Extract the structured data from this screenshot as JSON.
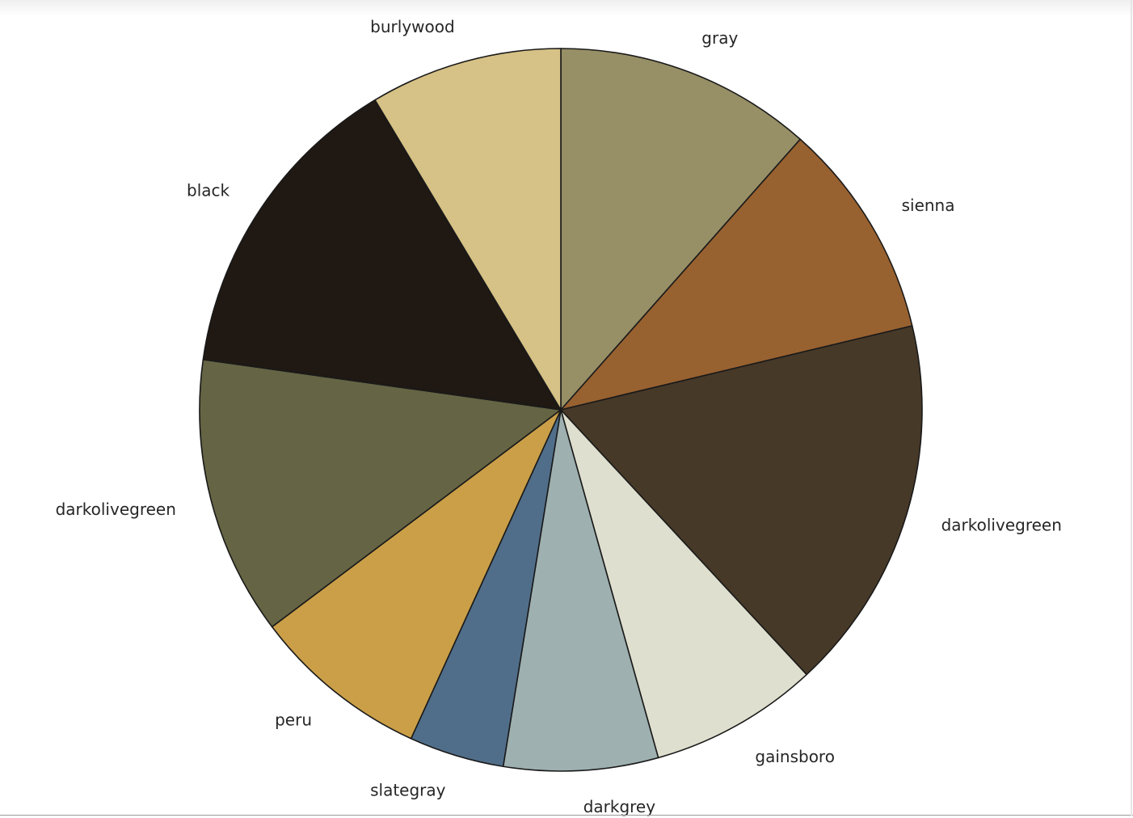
{
  "chart_data": {
    "type": "pie",
    "title": "",
    "start_angle_deg": 90,
    "direction": "clockwise",
    "edge_color": "#1a1a1a",
    "slices": [
      {
        "label": "gray",
        "value": 12.2,
        "color": "#978f66"
      },
      {
        "label": "sienna",
        "value": 10.3,
        "color": "#986130"
      },
      {
        "label": "darkolivegreen",
        "value": 17.8,
        "color": "#473928"
      },
      {
        "label": "gainsboro",
        "value": 8.0,
        "color": "#dfdfcf"
      },
      {
        "label": "darkgrey",
        "value": 7.3,
        "color": "#9eb0b0"
      },
      {
        "label": "slategray",
        "value": 4.5,
        "color": "#506e8a"
      },
      {
        "label": "peru",
        "value": 8.4,
        "color": "#ca9f48"
      },
      {
        "label": "darkolivegreen",
        "value": 13.2,
        "color": "#656444"
      },
      {
        "label": "black",
        "value": 15.0,
        "color": "#1f1813"
      },
      {
        "label": "burlywood",
        "value": 9.1,
        "color": "#d6c186"
      }
    ]
  }
}
